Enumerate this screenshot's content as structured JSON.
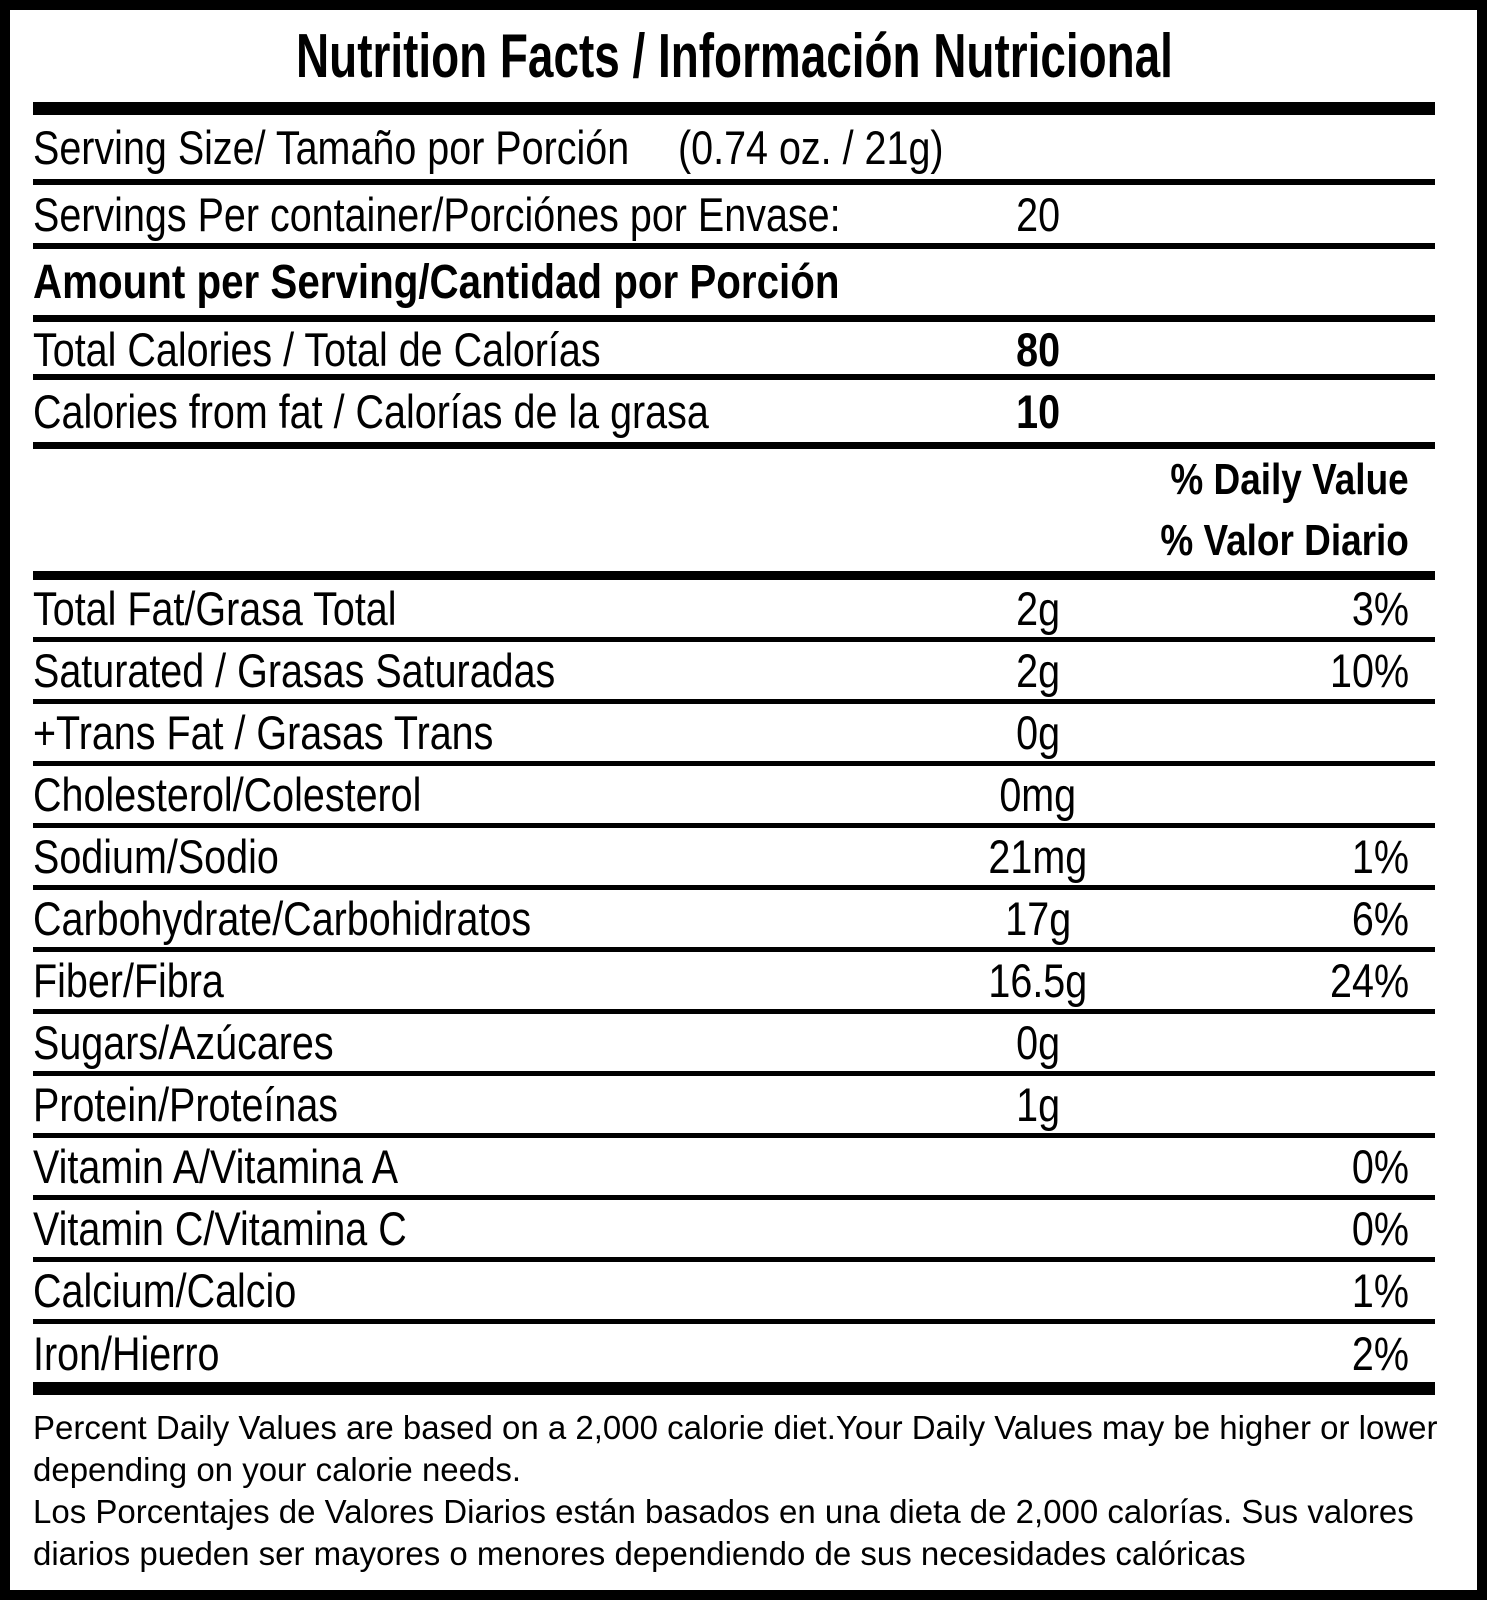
{
  "title": "Nutrition Facts / Información Nutricional",
  "serving_size": {
    "label": "Serving Size/ Tamaño por Porción",
    "value": "(0.74 oz. / 21g)"
  },
  "servings_per_container": {
    "label": "Servings Per container/Porciónes por Envase:",
    "value": "20"
  },
  "amount_per_serving_header": "Amount per Serving/Cantidad por Porción",
  "calories": {
    "total": {
      "label": "Total Calories / Total de Calorías",
      "value": "80"
    },
    "from_fat": {
      "label": "Calories from fat / Calorías de la grasa",
      "value": "10"
    }
  },
  "daily_value_header": {
    "line1": "% Daily Value",
    "line2": "% Valor Diario"
  },
  "nutrients": [
    {
      "label": "Total Fat/Grasa Total",
      "amount": "2g",
      "dv": "3%"
    },
    {
      "label": "Saturated / Grasas Saturadas",
      "amount": "2g",
      "dv": "10%"
    },
    {
      "label": "+Trans Fat / Grasas Trans",
      "amount": "0g",
      "dv": ""
    },
    {
      "label": "Cholesterol/Colesterol",
      "amount": "0mg",
      "dv": ""
    },
    {
      "label": "Sodium/Sodio",
      "amount": "21mg",
      "dv": "1%"
    },
    {
      "label": "Carbohydrate/Carbohidratos",
      "amount": "17g",
      "dv": "6%"
    },
    {
      "label": "Fiber/Fibra",
      "amount": "16.5g",
      "dv": "24%"
    },
    {
      "label": "Sugars/Azúcares",
      "amount": "0g",
      "dv": ""
    },
    {
      "label": "Protein/Proteínas",
      "amount": "1g",
      "dv": ""
    },
    {
      "label": "Vitamin A/Vitamina A",
      "amount": "",
      "dv": "0%"
    },
    {
      "label": "Vitamin C/Vitamina C",
      "amount": "",
      "dv": "0%"
    },
    {
      "label": "Calcium/Calcio",
      "amount": "",
      "dv": "1%"
    },
    {
      "label": "Iron/Hierro",
      "amount": "",
      "dv": "2%"
    }
  ],
  "footnote": {
    "en": "Percent Daily Values are based on a 2,000 calorie diet.Your Daily Values may be higher or lower depending on your calorie needs.",
    "es": "Los Porcentajes de Valores Diarios están basados en una dieta de 2,000 calorías. Sus valores diarios pueden ser mayores o menores dependiendo de sus necesidades calóricas"
  },
  "colors": {
    "ink": "#000000",
    "background": "#ffffff"
  }
}
